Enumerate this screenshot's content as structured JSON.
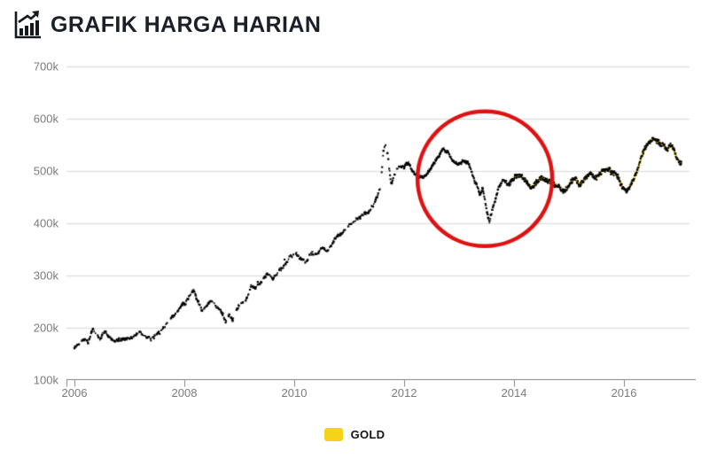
{
  "header": {
    "title": "GRAFIK HARGA HARIAN",
    "icon": "bar-chart-rising-icon"
  },
  "legend": {
    "items": [
      {
        "label": "GOLD",
        "color": "#F5D318"
      }
    ]
  },
  "colors": {
    "title_text": "#1b2028",
    "grid_line": "#e4e4e4",
    "axis_line": "#9b9b9b",
    "tick_label": "#7c7c7c",
    "series_line": "#F5D318",
    "series_points": "#000000",
    "annotation_red": "#DE1212",
    "background": "#ffffff"
  },
  "chart_data": {
    "type": "scatter",
    "title": "GRAFIK HARGA HARIAN",
    "series": [
      {
        "name": "GOLD",
        "color": "#F5D318",
        "point_color": "#000000"
      }
    ],
    "xlabel": "",
    "ylabel": "",
    "unit_suffix": "k",
    "x_range_years": [
      2006.0,
      2017.05
    ],
    "ylim_k": [
      100,
      700
    ],
    "grid": true,
    "legend_position": "bottom-center",
    "y_ticks": [
      {
        "v": 100,
        "label": "100k"
      },
      {
        "v": 200,
        "label": "200k"
      },
      {
        "v": 300,
        "label": "300k"
      },
      {
        "v": 400,
        "label": "400k"
      },
      {
        "v": 500,
        "label": "500k"
      },
      {
        "v": 600,
        "label": "600k"
      },
      {
        "v": 700,
        "label": "700k"
      }
    ],
    "x_ticks": [
      {
        "v": 2006,
        "label": "2006"
      },
      {
        "v": 2008,
        "label": "2008"
      },
      {
        "v": 2010,
        "label": "2010"
      },
      {
        "v": 2012,
        "label": "2012"
      },
      {
        "v": 2014,
        "label": "2014"
      },
      {
        "v": 2016,
        "label": "2016"
      }
    ],
    "yellow_line_from_year": 2014.0,
    "points": [
      [
        2006.0,
        163
      ],
      [
        2006.08,
        170
      ],
      [
        2006.16,
        176
      ],
      [
        2006.25,
        168
      ],
      [
        2006.33,
        196
      ],
      [
        2006.4,
        185
      ],
      [
        2006.46,
        176
      ],
      [
        2006.55,
        188
      ],
      [
        2006.63,
        180
      ],
      [
        2006.72,
        172
      ],
      [
        2006.8,
        178
      ],
      [
        2006.9,
        183
      ],
      [
        2007.0,
        179
      ],
      [
        2007.1,
        186
      ],
      [
        2007.2,
        192
      ],
      [
        2007.3,
        187
      ],
      [
        2007.4,
        183
      ],
      [
        2007.5,
        190
      ],
      [
        2007.6,
        196
      ],
      [
        2007.7,
        205
      ],
      [
        2007.8,
        220
      ],
      [
        2007.9,
        236
      ],
      [
        2008.0,
        250
      ],
      [
        2008.1,
        263
      ],
      [
        2008.17,
        270
      ],
      [
        2008.25,
        255
      ],
      [
        2008.33,
        237
      ],
      [
        2008.42,
        250
      ],
      [
        2008.5,
        258
      ],
      [
        2008.58,
        246
      ],
      [
        2008.67,
        236
      ],
      [
        2008.75,
        215
      ],
      [
        2008.82,
        232
      ],
      [
        2008.88,
        220
      ],
      [
        2008.95,
        240
      ],
      [
        2009.05,
        252
      ],
      [
        2009.15,
        262
      ],
      [
        2009.22,
        284
      ],
      [
        2009.3,
        276
      ],
      [
        2009.4,
        288
      ],
      [
        2009.5,
        298
      ],
      [
        2009.6,
        291
      ],
      [
        2009.7,
        304
      ],
      [
        2009.8,
        316
      ],
      [
        2009.9,
        330
      ],
      [
        2010.0,
        340
      ],
      [
        2010.1,
        330
      ],
      [
        2010.2,
        321
      ],
      [
        2010.3,
        337
      ],
      [
        2010.4,
        344
      ],
      [
        2010.5,
        352
      ],
      [
        2010.6,
        348
      ],
      [
        2010.7,
        361
      ],
      [
        2010.8,
        371
      ],
      [
        2010.9,
        379
      ],
      [
        2011.0,
        391
      ],
      [
        2011.1,
        399
      ],
      [
        2011.2,
        407
      ],
      [
        2011.3,
        417
      ],
      [
        2011.4,
        427
      ],
      [
        2011.5,
        443
      ],
      [
        2011.57,
        468
      ],
      [
        2011.62,
        540
      ],
      [
        2011.66,
        557
      ],
      [
        2011.7,
        535
      ],
      [
        2011.76,
        478
      ],
      [
        2011.83,
        498
      ],
      [
        2011.9,
        513
      ],
      [
        2012.0,
        511
      ],
      [
        2012.08,
        521
      ],
      [
        2012.16,
        504
      ],
      [
        2012.25,
        487
      ],
      [
        2012.35,
        482
      ],
      [
        2012.45,
        494
      ],
      [
        2012.55,
        511
      ],
      [
        2012.65,
        527
      ],
      [
        2012.72,
        537
      ],
      [
        2012.8,
        531
      ],
      [
        2012.9,
        517
      ],
      [
        2013.0,
        515
      ],
      [
        2013.08,
        525
      ],
      [
        2013.16,
        517
      ],
      [
        2013.25,
        494
      ],
      [
        2013.32,
        477
      ],
      [
        2013.38,
        455
      ],
      [
        2013.43,
        467
      ],
      [
        2013.5,
        424
      ],
      [
        2013.55,
        398
      ],
      [
        2013.6,
        419
      ],
      [
        2013.66,
        441
      ],
      [
        2013.72,
        464
      ],
      [
        2013.8,
        477
      ],
      [
        2013.9,
        471
      ],
      [
        2014.0,
        481
      ],
      [
        2014.1,
        491
      ],
      [
        2014.2,
        477
      ],
      [
        2014.3,
        467
      ],
      [
        2014.4,
        477
      ],
      [
        2014.5,
        486
      ],
      [
        2014.6,
        477
      ],
      [
        2014.7,
        471
      ],
      [
        2014.8,
        467
      ],
      [
        2014.9,
        455
      ],
      [
        2015.0,
        471
      ],
      [
        2015.1,
        486
      ],
      [
        2015.2,
        477
      ],
      [
        2015.3,
        491
      ],
      [
        2015.4,
        497
      ],
      [
        2015.5,
        486
      ],
      [
        2015.6,
        499
      ],
      [
        2015.7,
        509
      ],
      [
        2015.78,
        499
      ],
      [
        2015.86,
        489
      ],
      [
        2015.94,
        473
      ],
      [
        2016.04,
        458
      ],
      [
        2016.14,
        470
      ],
      [
        2016.24,
        494
      ],
      [
        2016.34,
        528
      ],
      [
        2016.44,
        553
      ],
      [
        2016.54,
        565
      ],
      [
        2016.63,
        559
      ],
      [
        2016.71,
        555
      ],
      [
        2016.79,
        540
      ],
      [
        2016.85,
        550
      ],
      [
        2016.91,
        534
      ],
      [
        2017.0,
        513
      ],
      [
        2017.05,
        509
      ]
    ],
    "annotation_circle": {
      "center_year": 2013.47,
      "center_value_k": 485,
      "radius_px": 76,
      "color": "#DE1212",
      "meaning": "highlighted 2013 price drop"
    }
  }
}
